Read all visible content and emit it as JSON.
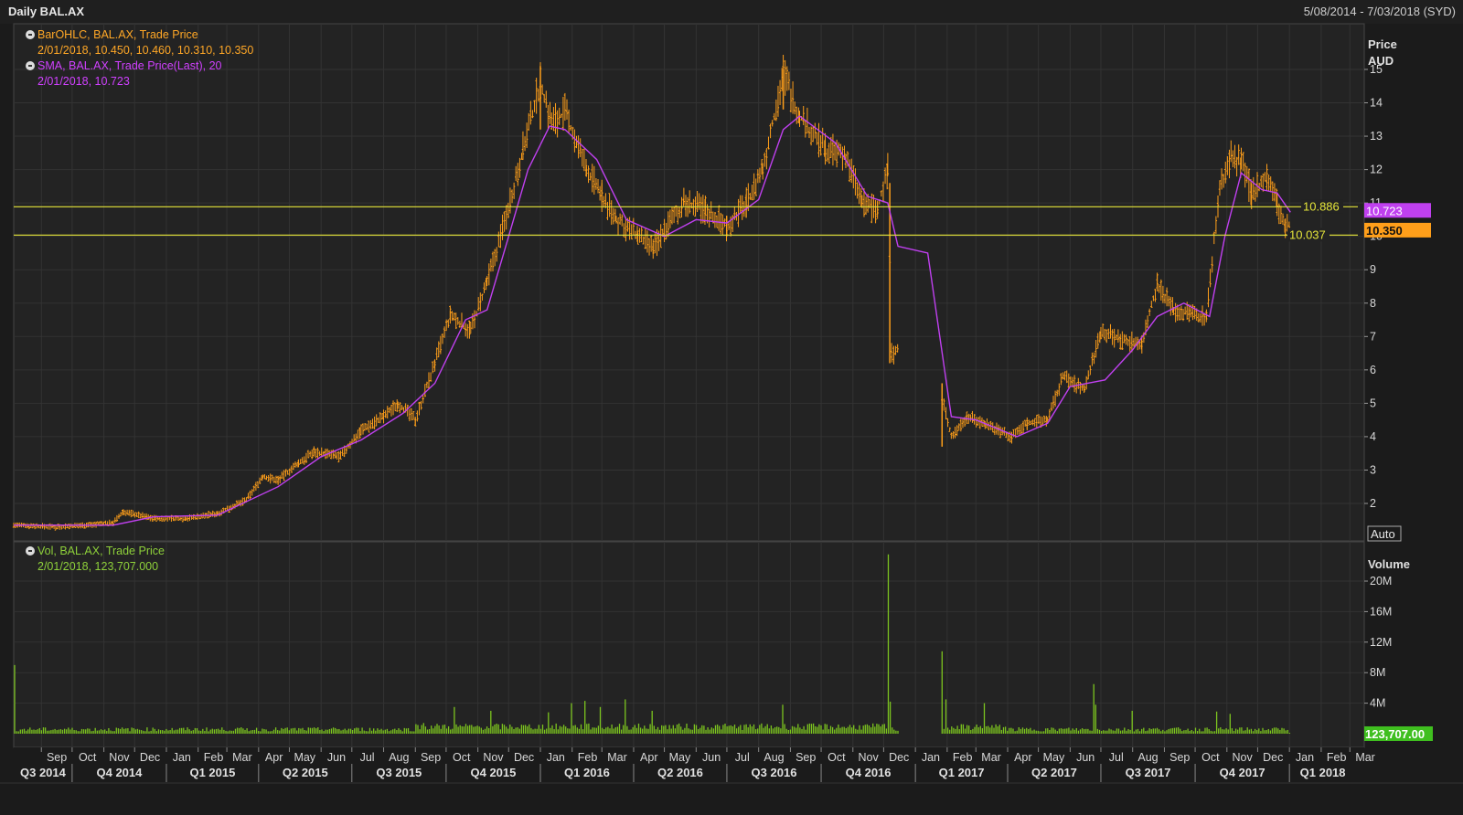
{
  "window": {
    "title": "Daily BAL.AX",
    "date_range": "5/08/2014 - 7/03/2018 (SYD)"
  },
  "legend": {
    "bar_name": "BarOHLC, BAL.AX, Trade Price",
    "bar_values": "2/01/2018, 10.450, 10.460, 10.310, 10.350",
    "sma_name": "SMA, BAL.AX, Trade Price(Last), 20",
    "sma_values": "2/01/2018, 10.723",
    "vol_name": "Vol, BAL.AX, Trade Price",
    "vol_values": "2/01/2018, 123,707.000"
  },
  "colors": {
    "price": "#ff9f1a",
    "sma": "#c040f0",
    "volume": "#7cc41f",
    "hline": "#e6e63a",
    "grid": "#333333"
  },
  "chart_data": [
    {
      "type": "line",
      "panel": "price",
      "ylabel": "Price AUD",
      "ylim": [
        1,
        16
      ],
      "yticks": [
        2,
        3,
        4,
        5,
        6,
        7,
        8,
        9,
        10,
        11,
        12,
        13,
        14,
        15
      ],
      "scale_mode": "Auto",
      "series": [
        {
          "name": "BarOHLC, BAL.AX, Trade Price",
          "style": "ohlc",
          "points": [
            [
              "2014-08-05",
              1.35
            ],
            [
              "2014-09-15",
              1.3
            ],
            [
              "2014-10-15",
              1.35
            ],
            [
              "2014-11-10",
              1.42
            ],
            [
              "2014-11-20",
              1.75
            ],
            [
              "2014-12-20",
              1.55
            ],
            [
              "2015-01-20",
              1.55
            ],
            [
              "2015-02-20",
              1.7
            ],
            [
              "2015-03-20",
              2.1
            ],
            [
              "2015-04-05",
              2.8
            ],
            [
              "2015-04-20",
              2.7
            ],
            [
              "2015-05-10",
              3.2
            ],
            [
              "2015-05-25",
              3.55
            ],
            [
              "2015-06-20",
              3.4
            ],
            [
              "2015-07-10",
              4.2
            ],
            [
              "2015-08-01",
              4.6
            ],
            [
              "2015-08-15",
              5.0
            ],
            [
              "2015-09-01",
              4.5
            ],
            [
              "2015-09-20",
              6.2
            ],
            [
              "2015-10-05",
              7.6
            ],
            [
              "2015-10-25",
              7.2
            ],
            [
              "2015-11-10",
              8.6
            ],
            [
              "2015-11-25",
              10.2
            ],
            [
              "2015-12-15",
              12.6
            ],
            [
              "2016-01-01",
              14.6
            ],
            [
              "2016-01-12",
              13.4
            ],
            [
              "2016-01-25",
              13.7
            ],
            [
              "2016-02-15",
              12.0
            ],
            [
              "2016-03-01",
              11.2
            ],
            [
              "2016-03-15",
              10.5
            ],
            [
              "2016-04-05",
              10.0
            ],
            [
              "2016-04-20",
              9.6
            ],
            [
              "2016-05-01",
              10.2
            ],
            [
              "2016-05-20",
              11.0
            ],
            [
              "2016-06-10",
              10.8
            ],
            [
              "2016-07-01",
              10.3
            ],
            [
              "2016-07-20",
              11.0
            ],
            [
              "2016-08-05",
              12.0
            ],
            [
              "2016-08-25",
              14.9
            ],
            [
              "2016-09-10",
              13.6
            ],
            [
              "2016-10-05",
              12.6
            ],
            [
              "2016-10-25",
              12.4
            ],
            [
              "2016-11-10",
              11.0
            ],
            [
              "2016-11-25",
              10.8
            ],
            [
              "2016-12-05",
              12.0
            ],
            [
              "2016-12-09",
              6.4
            ],
            [
              "2016-12-15",
              6.6
            ],
            [
              "2017-01-05",
              null
            ],
            [
              "2017-01-27",
              5.2
            ],
            [
              "2017-02-05",
              4.0
            ],
            [
              "2017-02-20",
              4.6
            ],
            [
              "2017-03-10",
              4.4
            ],
            [
              "2017-04-05",
              4.0
            ],
            [
              "2017-04-20",
              4.4
            ],
            [
              "2017-05-10",
              4.5
            ],
            [
              "2017-05-25",
              5.8
            ],
            [
              "2017-06-15",
              5.4
            ],
            [
              "2017-07-01",
              7.2
            ],
            [
              "2017-07-20",
              6.9
            ],
            [
              "2017-08-10",
              6.8
            ],
            [
              "2017-08-25",
              8.6
            ],
            [
              "2017-09-10",
              7.8
            ],
            [
              "2017-09-25",
              7.7
            ],
            [
              "2017-10-12",
              7.6
            ],
            [
              "2017-10-25",
              11.5
            ],
            [
              "2017-11-05",
              12.4
            ],
            [
              "2017-11-15",
              12.2
            ],
            [
              "2017-11-25",
              11.3
            ],
            [
              "2017-12-10",
              11.8
            ],
            [
              "2017-12-20",
              11.0
            ],
            [
              "2017-12-28",
              10.2
            ],
            [
              "2018-01-02",
              10.35
            ]
          ]
        },
        {
          "name": "SMA, BAL.AX, Trade Price(Last), 20",
          "style": "line",
          "points": [
            [
              "2014-08-05",
              1.35
            ],
            [
              "2014-11-10",
              1.35
            ],
            [
              "2014-12-20",
              1.6
            ],
            [
              "2015-02-20",
              1.65
            ],
            [
              "2015-04-20",
              2.5
            ],
            [
              "2015-06-01",
              3.4
            ],
            [
              "2015-07-10",
              3.9
            ],
            [
              "2015-08-20",
              4.7
            ],
            [
              "2015-09-20",
              5.6
            ],
            [
              "2015-10-20",
              7.5
            ],
            [
              "2015-11-10",
              7.8
            ],
            [
              "2015-12-01",
              10.0
            ],
            [
              "2015-12-20",
              12.0
            ],
            [
              "2016-01-10",
              13.3
            ],
            [
              "2016-01-25",
              13.2
            ],
            [
              "2016-02-25",
              12.3
            ],
            [
              "2016-03-25",
              10.5
            ],
            [
              "2016-05-01",
              10.0
            ],
            [
              "2016-06-01",
              10.5
            ],
            [
              "2016-07-01",
              10.4
            ],
            [
              "2016-08-01",
              11.1
            ],
            [
              "2016-08-25",
              13.2
            ],
            [
              "2016-09-10",
              13.6
            ],
            [
              "2016-10-15",
              12.8
            ],
            [
              "2016-11-15",
              11.2
            ],
            [
              "2016-12-05",
              11.0
            ],
            [
              "2016-12-15",
              9.7
            ],
            [
              "2017-01-13",
              9.5
            ],
            [
              "2017-02-05",
              4.6
            ],
            [
              "2017-03-01",
              4.5
            ],
            [
              "2017-04-10",
              4.0
            ],
            [
              "2017-05-10",
              4.4
            ],
            [
              "2017-06-01",
              5.5
            ],
            [
              "2017-07-05",
              5.7
            ],
            [
              "2017-08-01",
              6.6
            ],
            [
              "2017-08-25",
              7.6
            ],
            [
              "2017-09-20",
              8.0
            ],
            [
              "2017-10-15",
              7.6
            ],
            [
              "2017-10-30",
              10.0
            ],
            [
              "2017-11-15",
              11.9
            ],
            [
              "2017-12-05",
              11.4
            ],
            [
              "2017-12-20",
              11.3
            ],
            [
              "2018-01-02",
              10.723
            ]
          ]
        }
      ],
      "hlines": [
        10.886,
        10.037
      ],
      "price_tags": [
        {
          "label": "10.723",
          "value": 10.723,
          "color": "#c040f0"
        },
        {
          "label": "10.350",
          "value": 10.35,
          "color": "#ff9f1a"
        }
      ]
    },
    {
      "type": "bar",
      "panel": "volume",
      "ylabel": "Volume",
      "ylim": [
        0,
        22
      ],
      "yticks": [
        4,
        8,
        12,
        16,
        20
      ],
      "ytick_labels": [
        "4M",
        "8M",
        "12M",
        "16M",
        "20M"
      ],
      "series": [
        {
          "name": "Vol, BAL.AX, Trade Price",
          "unit": "M",
          "baseline": 0.6,
          "spikes": [
            [
              "2014-08-05",
              9.0
            ],
            [
              "2015-09-10",
              1.4
            ],
            [
              "2015-10-10",
              3.5
            ],
            [
              "2015-11-15",
              3.0
            ],
            [
              "2016-01-10",
              2.8
            ],
            [
              "2016-02-01",
              4.0
            ],
            [
              "2016-02-15",
              4.3
            ],
            [
              "2016-03-01",
              3.5
            ],
            [
              "2016-03-25",
              4.5
            ],
            [
              "2016-04-20",
              3.0
            ],
            [
              "2016-08-25",
              3.8
            ],
            [
              "2016-12-07",
              23.5
            ],
            [
              "2016-12-08",
              9.5
            ],
            [
              "2016-12-09",
              4.2
            ],
            [
              "2017-01-27",
              10.8
            ],
            [
              "2017-01-30",
              4.5
            ],
            [
              "2017-03-10",
              4.0
            ],
            [
              "2017-06-25",
              6.5
            ],
            [
              "2017-06-27",
              3.8
            ],
            [
              "2017-08-01",
              3.0
            ],
            [
              "2017-10-22",
              2.9
            ],
            [
              "2017-11-05",
              2.6
            ],
            [
              "2018-01-02",
              0.124
            ]
          ]
        }
      ],
      "price_tags": [
        {
          "label": "123,707.00",
          "value": 0.124,
          "color": "#3fbf1f"
        }
      ]
    }
  ],
  "x_axis": {
    "months": [
      "Sep",
      "Oct",
      "Nov",
      "Dec",
      "Jan",
      "Feb",
      "Mar",
      "Apr",
      "May",
      "Jun",
      "Jul",
      "Aug",
      "Sep",
      "Oct",
      "Nov",
      "Dec",
      "Jan",
      "Feb",
      "Mar",
      "Apr",
      "May",
      "Jun",
      "Jul",
      "Aug",
      "Sep",
      "Oct",
      "Nov",
      "Dec",
      "Jan",
      "Feb",
      "Mar",
      "Apr",
      "May",
      "Jun",
      "Jul",
      "Aug",
      "Sep",
      "Oct",
      "Nov",
      "Dec",
      "Jan",
      "Feb",
      "Mar"
    ],
    "quarters": [
      "Q3 2014",
      "Q4 2014",
      "Q1 2015",
      "Q2 2015",
      "Q3 2015",
      "Q4 2015",
      "Q1 2016",
      "Q2 2016",
      "Q3 2016",
      "Q4 2016",
      "Q1 2017",
      "Q2 2017",
      "Q3 2017",
      "Q4 2017",
      "Q1 2018"
    ]
  }
}
